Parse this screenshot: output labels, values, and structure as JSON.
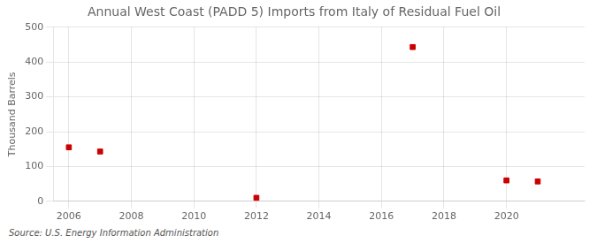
{
  "chart_data": {
    "type": "scatter",
    "title": "Annual West Coast (PADD 5) Imports from Italy of Residual Fuel Oil",
    "ylabel": "Thousand Barrels",
    "source": "Source: U.S. Energy Information Administration",
    "x": [
      2006,
      2007,
      2012,
      2017,
      2020,
      2021
    ],
    "values": [
      155,
      143,
      10,
      443,
      60,
      57
    ],
    "color": "#cc0000",
    "marker": "square",
    "xlim": [
      2005.5,
      2022.5
    ],
    "xticks": [
      2006,
      2008,
      2010,
      2012,
      2014,
      2016,
      2018,
      2020
    ],
    "ylim": [
      0,
      500
    ],
    "yticks": [
      0,
      100,
      200,
      300,
      400,
      500
    ],
    "grid": true
  }
}
